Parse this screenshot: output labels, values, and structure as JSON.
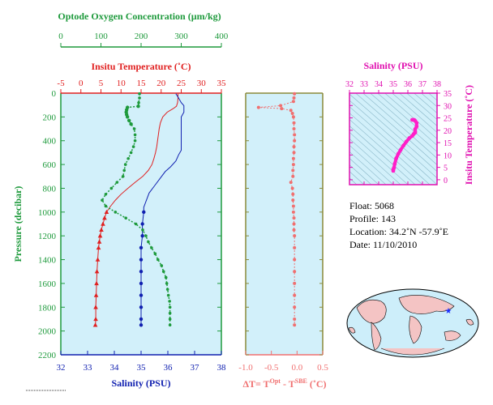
{
  "colors": {
    "oxygen": "#1e9a3c",
    "temperature": "#e02020",
    "salinity": "#1020b0",
    "delta": "#f07070",
    "ts": "#e010b0",
    "panel_bg": "#d2f0fa",
    "ts_accent": "#ff1ec8"
  },
  "labels": {
    "oxygen_title": "Optode Oxygen Concentration (µm/kg)",
    "temp_title": "Insitu Temperature (˚C)",
    "pressure_label": "Pressure (decibar)",
    "salinity_label": "Salinity (PSU)",
    "delta_label_main": "ΔT= T",
    "delta_label_sup1": "Opt",
    "delta_label_mid": " - T",
    "delta_label_sup2": "SBE",
    "delta_label_end": " (˚C)",
    "ts_top_title": "Salinity (PSU)",
    "ts_right_title": "Insitu Temperature (˚C)"
  },
  "info": {
    "float": "Float:  5068",
    "profile": "Profile:  143",
    "location": "Location:  34.2˚N  -57.9˚E",
    "date": "Date:  11/10/2010"
  },
  "chart_data": [
    {
      "type": "line",
      "title": "",
      "ylabel": "Pressure (decibar)",
      "y_inverted": true,
      "ylim": [
        0,
        2200
      ],
      "y_ticks": [
        0,
        200,
        400,
        600,
        800,
        1000,
        1200,
        1400,
        1600,
        1800,
        2000,
        2200
      ],
      "axes": {
        "oxygen": {
          "label": "Optode Oxygen Concentration (µm/kg)",
          "lim": [
            0,
            400
          ],
          "ticks": [
            0,
            100,
            200,
            300,
            400
          ]
        },
        "temperature": {
          "label": "Insitu Temperature (˚C)",
          "lim": [
            -5,
            35
          ],
          "ticks": [
            -5,
            0,
            5,
            10,
            15,
            20,
            25,
            30,
            35
          ]
        },
        "salinity": {
          "label": "Salinity (PSU)",
          "lim": [
            32,
            38
          ],
          "ticks": [
            32,
            33,
            34,
            35,
            36,
            37,
            38
          ]
        }
      },
      "series": [
        {
          "axis": "temperature",
          "style": "line-with-markers-deep",
          "points": [
            [
              24.2,
              5
            ],
            [
              24.2,
              40
            ],
            [
              24.1,
              80
            ],
            [
              23.8,
              110
            ],
            [
              23.0,
              130
            ],
            [
              21.5,
              160
            ],
            [
              20.4,
              200
            ],
            [
              19.8,
              250
            ],
            [
              19.5,
              300
            ],
            [
              19.3,
              350
            ],
            [
              19.1,
              400
            ],
            [
              18.9,
              450
            ],
            [
              18.6,
              500
            ],
            [
              18.2,
              550
            ],
            [
              17.7,
              600
            ],
            [
              16.8,
              650
            ],
            [
              15.4,
              700
            ],
            [
              13.5,
              750
            ],
            [
              11.7,
              800
            ],
            [
              10.0,
              850
            ],
            [
              8.6,
              900
            ],
            [
              7.4,
              950
            ],
            [
              6.4,
              1000
            ],
            [
              5.9,
              1050
            ],
            [
              5.5,
              1100
            ],
            [
              5.1,
              1150
            ],
            [
              4.8,
              1200
            ],
            [
              4.6,
              1250
            ],
            [
              4.4,
              1300
            ],
            [
              4.2,
              1400
            ],
            [
              4.0,
              1500
            ],
            [
              3.9,
              1600
            ],
            [
              3.8,
              1700
            ],
            [
              3.7,
              1800
            ],
            [
              3.7,
              1900
            ],
            [
              3.6,
              1950
            ]
          ]
        },
        {
          "axis": "salinity",
          "style": "line-with-markers-deep",
          "points": [
            [
              36.3,
              5
            ],
            [
              36.4,
              40
            ],
            [
              36.5,
              80
            ],
            [
              36.6,
              105
            ],
            [
              36.6,
              130
            ],
            [
              36.6,
              160
            ],
            [
              36.5,
              200
            ],
            [
              36.5,
              250
            ],
            [
              36.5,
              300
            ],
            [
              36.5,
              400
            ],
            [
              36.5,
              480
            ],
            [
              36.4,
              520
            ],
            [
              36.3,
              570
            ],
            [
              36.1,
              620
            ],
            [
              35.9,
              660
            ],
            [
              35.7,
              720
            ],
            [
              35.5,
              780
            ],
            [
              35.3,
              840
            ],
            [
              35.2,
              900
            ],
            [
              35.1,
              960
            ],
            [
              35.1,
              1000
            ],
            [
              35.05,
              1100
            ],
            [
              35.05,
              1200
            ],
            [
              35.0,
              1300
            ],
            [
              35.0,
              1400
            ],
            [
              35.0,
              1500
            ],
            [
              35.0,
              1600
            ],
            [
              35.0,
              1700
            ],
            [
              35.0,
              1800
            ],
            [
              35.0,
              1900
            ],
            [
              35.0,
              1950
            ]
          ]
        },
        {
          "axis": "oxygen",
          "style": "dotted-markers",
          "points": [
            [
              196,
              5
            ],
            [
              196,
              40
            ],
            [
              194,
              80
            ],
            [
              193,
              110
            ],
            [
              166,
              120
            ],
            [
              164,
              140
            ],
            [
              163,
              160
            ],
            [
              164,
              180
            ],
            [
              166,
              200
            ],
            [
              170,
              230
            ],
            [
              175,
              260
            ],
            [
              183,
              300
            ],
            [
              185,
              350
            ],
            [
              185,
              400
            ],
            [
              181,
              450
            ],
            [
              175,
              500
            ],
            [
              168,
              550
            ],
            [
              161,
              600
            ],
            [
              158,
              650
            ],
            [
              155,
              700
            ],
            [
              140,
              750
            ],
            [
              126,
              800
            ],
            [
              112,
              850
            ],
            [
              103,
              900
            ],
            [
              112,
              950
            ],
            [
              136,
              1000
            ],
            [
              162,
              1050
            ],
            [
              187,
              1100
            ],
            [
              204,
              1150
            ],
            [
              212,
              1200
            ],
            [
              218,
              1250
            ],
            [
              226,
              1300
            ],
            [
              235,
              1350
            ],
            [
              242,
              1400
            ],
            [
              251,
              1450
            ],
            [
              256,
              1500
            ],
            [
              262,
              1550
            ],
            [
              264,
              1600
            ],
            [
              266,
              1650
            ],
            [
              268,
              1700
            ],
            [
              271,
              1750
            ],
            [
              272,
              1800
            ],
            [
              272,
              1850
            ],
            [
              272,
              1900
            ],
            [
              272,
              1950
            ]
          ]
        }
      ]
    },
    {
      "type": "scatter",
      "title": "",
      "xlabel": "ΔT= T^Opt - T^SBE (˚C)",
      "xlim": [
        -1.0,
        0.5
      ],
      "x_ticks": [
        -1.0,
        -0.5,
        0.0,
        0.5
      ],
      "ylim": [
        0,
        2200
      ],
      "points": [
        [
          -0.05,
          5
        ],
        [
          -0.06,
          40
        ],
        [
          -0.07,
          70
        ],
        [
          -0.32,
          105
        ],
        [
          -0.75,
          120
        ],
        [
          -0.3,
          130
        ],
        [
          -0.12,
          145
        ],
        [
          -0.09,
          170
        ],
        [
          -0.07,
          200
        ],
        [
          -0.06,
          250
        ],
        [
          -0.06,
          300
        ],
        [
          -0.05,
          350
        ],
        [
          -0.05,
          400
        ],
        [
          -0.06,
          450
        ],
        [
          -0.06,
          500
        ],
        [
          -0.07,
          550
        ],
        [
          -0.07,
          600
        ],
        [
          -0.08,
          650
        ],
        [
          -0.08,
          700
        ],
        [
          -0.12,
          750
        ],
        [
          -0.09,
          800
        ],
        [
          -0.08,
          850
        ],
        [
          -0.08,
          900
        ],
        [
          -0.07,
          950
        ],
        [
          -0.07,
          1000
        ],
        [
          -0.06,
          1050
        ],
        [
          -0.06,
          1100
        ],
        [
          -0.06,
          1150
        ],
        [
          -0.05,
          1200
        ],
        [
          -0.05,
          1300
        ],
        [
          -0.05,
          1400
        ],
        [
          -0.05,
          1500
        ],
        [
          -0.05,
          1600
        ],
        [
          -0.05,
          1700
        ],
        [
          -0.05,
          1800
        ],
        [
          -0.05,
          1900
        ],
        [
          -0.05,
          1950
        ]
      ]
    },
    {
      "type": "line",
      "title": "",
      "xlabel": "Salinity (PSU)",
      "ylabel": "Insitu Temperature (˚C)",
      "xlim": [
        32,
        38
      ],
      "ylim": [
        -2,
        35
      ],
      "x_ticks": [
        32,
        33,
        34,
        35,
        36,
        37,
        38
      ],
      "y_ticks": [
        0,
        5,
        10,
        15,
        20,
        25,
        30,
        35
      ],
      "points": [
        [
          35.0,
          3.6
        ],
        [
          35.0,
          4.2
        ],
        [
          35.05,
          4.8
        ],
        [
          35.1,
          6.4
        ],
        [
          35.2,
          8.6
        ],
        [
          35.35,
          10.5
        ],
        [
          35.5,
          12.0
        ],
        [
          35.7,
          13.8
        ],
        [
          35.9,
          15.4
        ],
        [
          36.1,
          16.8
        ],
        [
          36.3,
          17.7
        ],
        [
          36.4,
          18.5
        ],
        [
          36.5,
          19.0
        ],
        [
          36.5,
          19.5
        ],
        [
          36.5,
          20.4
        ],
        [
          36.6,
          21.5
        ],
        [
          36.6,
          23.0
        ],
        [
          36.5,
          23.8
        ],
        [
          36.45,
          24.1
        ],
        [
          36.4,
          24.2
        ],
        [
          36.3,
          24.2
        ]
      ]
    }
  ]
}
